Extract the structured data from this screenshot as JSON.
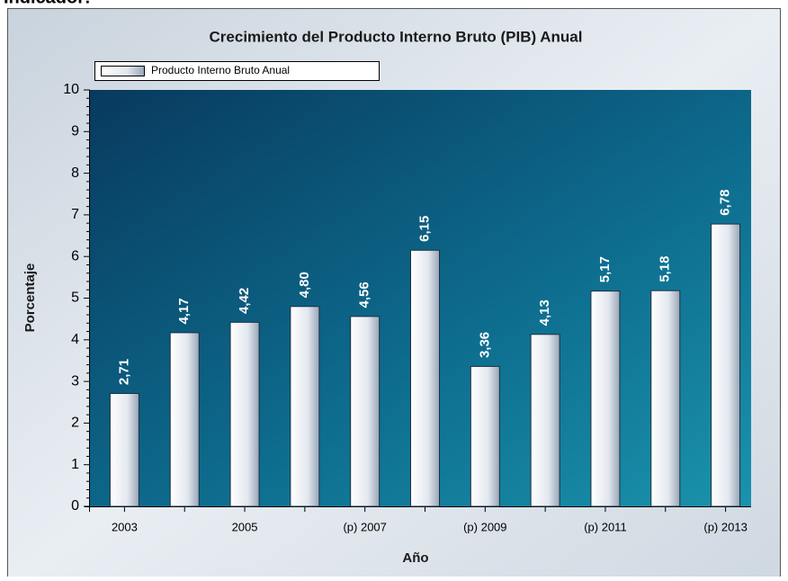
{
  "header": {
    "label": "Indicador:"
  },
  "chart_data": {
    "type": "bar",
    "title": "Crecimiento del Producto Interno Bruto (PIB) Anual",
    "x_label": "Año",
    "y_label": "Porcentaje",
    "categories": [
      "2003",
      null,
      "2005",
      null,
      "(p) 2007",
      null,
      "(p) 2009",
      null,
      "(p) 2011",
      null,
      "(p) 2013"
    ],
    "series": [
      {
        "name": "Producto Interno Bruto Anual",
        "color": "#e8ecf2",
        "values": [
          2.71,
          4.17,
          4.42,
          4.8,
          4.56,
          6.15,
          3.36,
          4.13,
          5.17,
          5.18,
          6.78
        ],
        "value_labels": [
          "2,71",
          "4,17",
          "4,42",
          "4,80",
          "4,56",
          "6,15",
          "3,36",
          "4,13",
          "5,17",
          "5,18",
          "6,78"
        ]
      }
    ],
    "ylim": [
      0,
      10
    ],
    "yticks": [
      0,
      1,
      2,
      3,
      4,
      5,
      6,
      7,
      8,
      9,
      10
    ],
    "legend": "top-left"
  }
}
